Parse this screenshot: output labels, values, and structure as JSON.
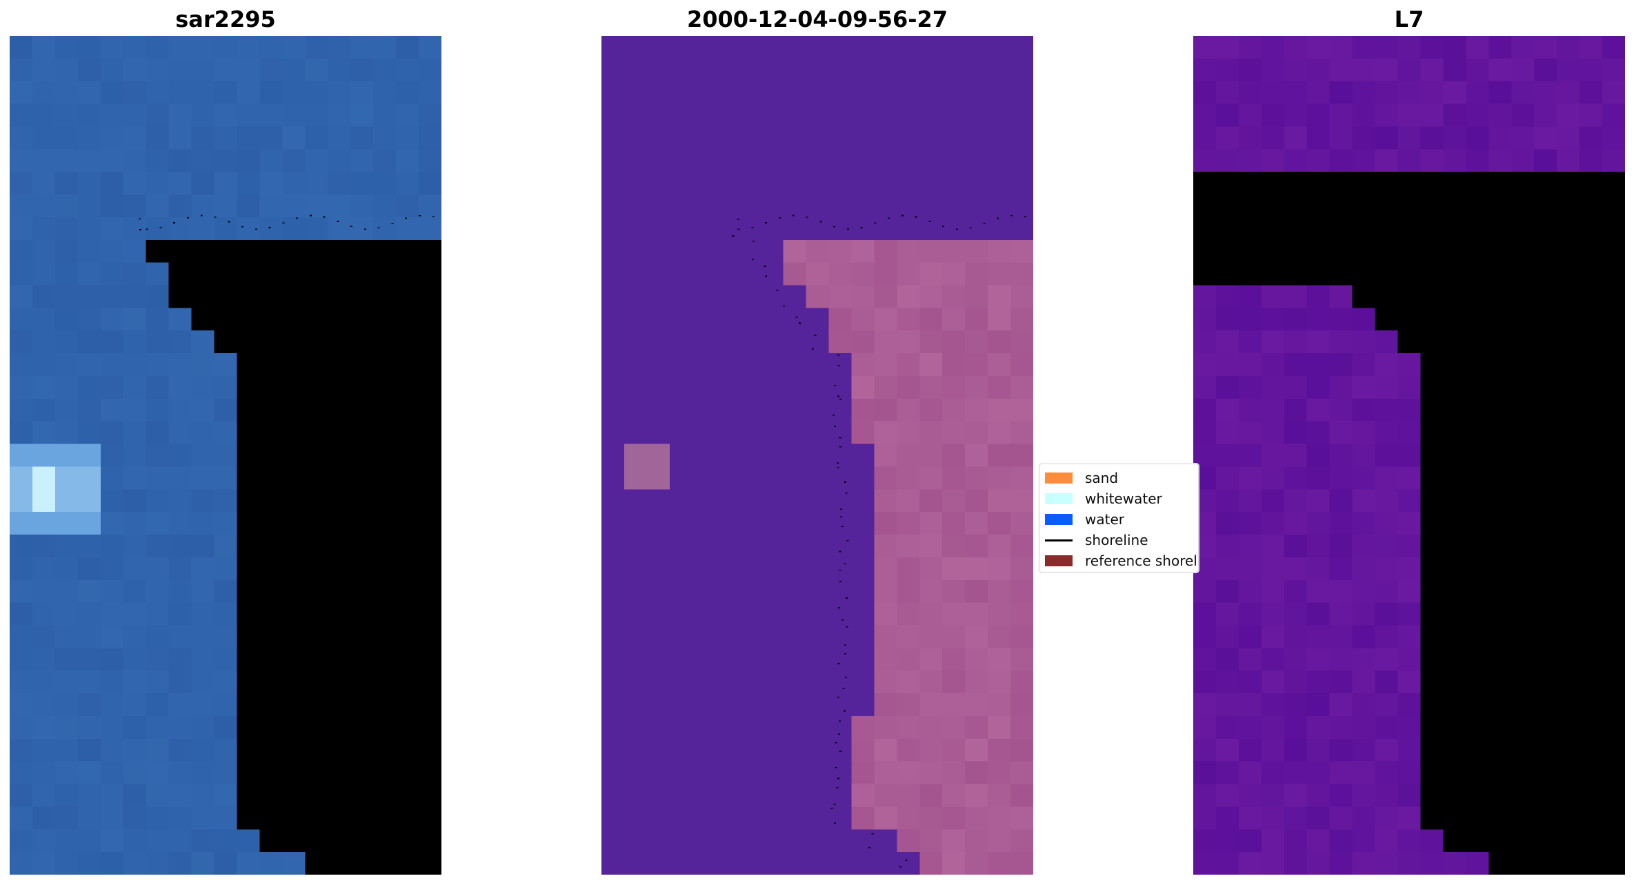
{
  "panels": [
    {
      "title": "sar2295"
    },
    {
      "title": "2000-12-04-09-56-27"
    },
    {
      "title": "L7"
    }
  ],
  "legend": {
    "items": [
      {
        "label": "sand",
        "color": "#ff8c3a",
        "kind": "patch"
      },
      {
        "label": "whitewater",
        "color": "#c8ffff",
        "kind": "patch"
      },
      {
        "label": "water",
        "color": "#0a5cff",
        "kind": "patch"
      },
      {
        "label": "shoreline",
        "color": "#000000",
        "kind": "line"
      },
      {
        "label": "reference shoreline",
        "color": "#8b2a2a",
        "kind": "patch"
      }
    ]
  },
  "colors": {
    "rgb_water": "#2f65ad",
    "class_background": "#55239a",
    "class_sand_overlay": "#b0649a",
    "index_low": "#6a1aa0",
    "index_high": "#c0103c"
  }
}
